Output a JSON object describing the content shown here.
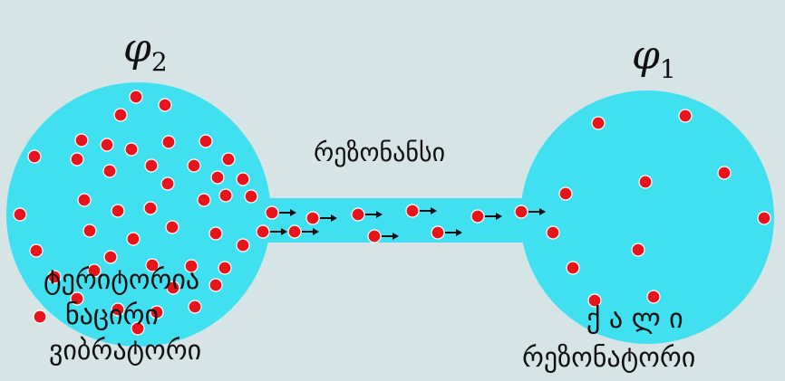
{
  "colors": {
    "background": "#d6e4e6",
    "reservoir_fill": "#40e0f0",
    "particle": "#e8141c",
    "particle_outline": "#ffffff",
    "arrow": "#111111",
    "text": "#111111"
  },
  "left_reservoir": {
    "potential_symbol": "φ",
    "potential_subscript": "2",
    "label_line1": "ტერიტორია",
    "label_line2": "ნაცირი",
    "label_line3": "ვიბრატორი"
  },
  "right_reservoir": {
    "potential_symbol": "φ",
    "potential_subscript": "1",
    "label_line1": "ქ ა ლ ი",
    "label_line2": "რეზონატორი"
  },
  "channel": {
    "label": "რეზონანსი"
  },
  "icons": {
    "particle": "particle-dot-icon",
    "flow_arrow": "flow-arrow-icon"
  }
}
